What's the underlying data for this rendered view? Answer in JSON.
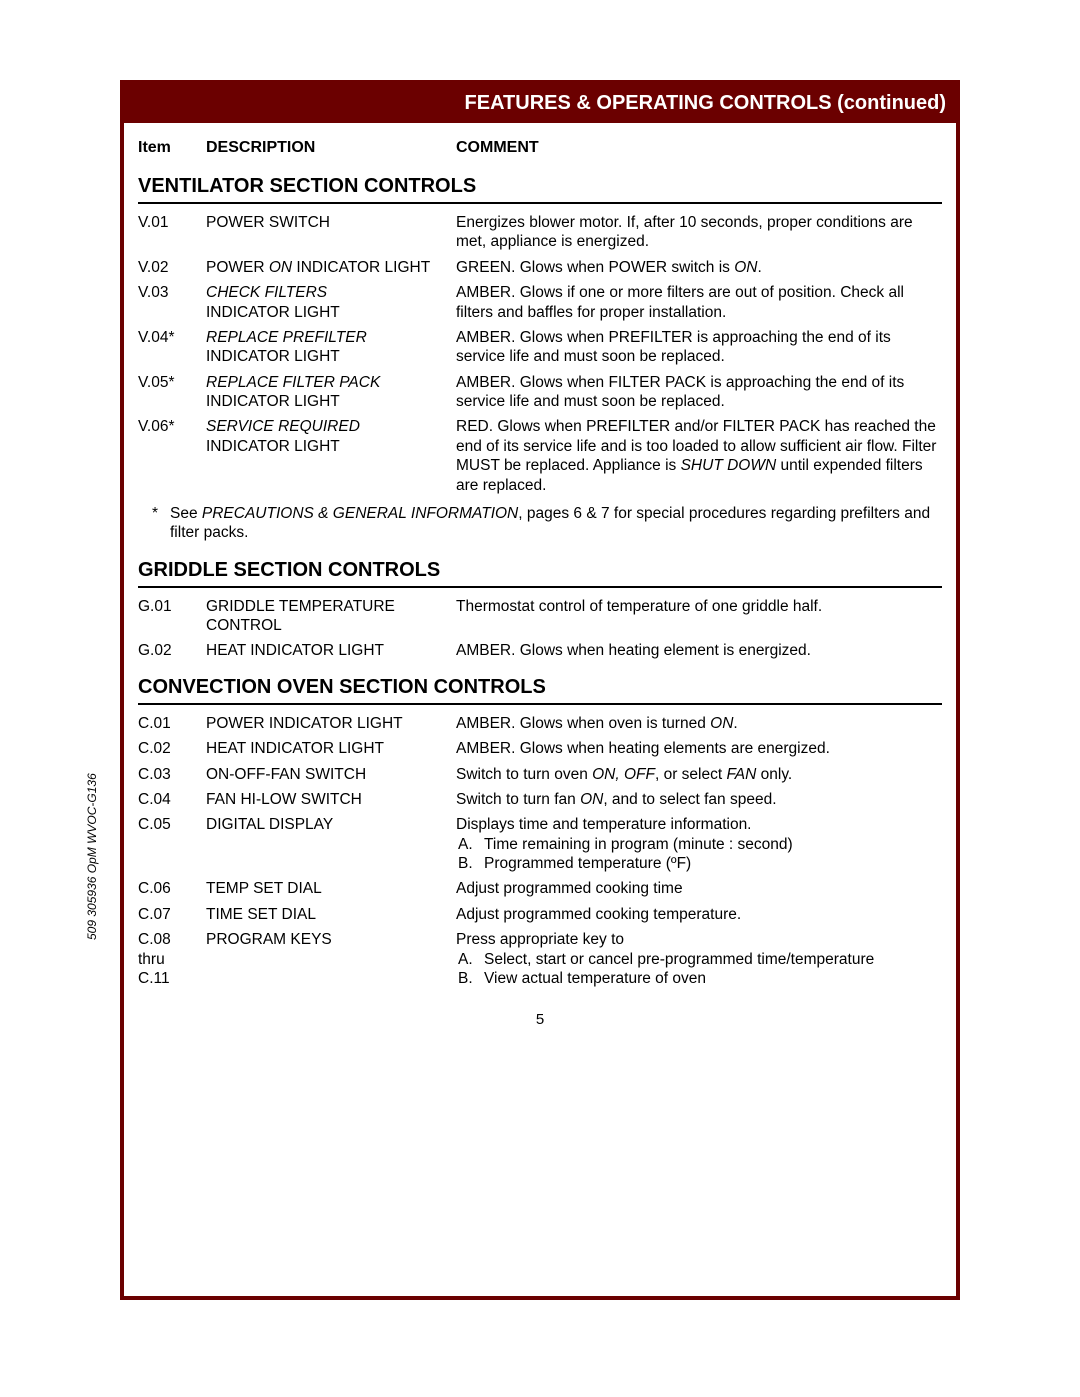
{
  "header_title": "FEATURES & OPERATING CONTROLS (continued)",
  "columns": {
    "item": "Item",
    "description": "DESCRIPTION",
    "comment": "COMMENT"
  },
  "sections": [
    {
      "title": "VENTILATOR SECTION CONTROLS",
      "rows": [
        {
          "item": "V.01",
          "desc_plain": "POWER SWITCH",
          "comment_plain": "Energizes blower motor.  If, after 10 seconds, proper conditions are met, appliance is energized."
        },
        {
          "item": "V.02",
          "desc_pre": "POWER ",
          "desc_ital": "ON",
          "desc_post": " INDICATOR LIGHT",
          "comment_pre": "GREEN.  Glows when POWER switch is ",
          "comment_ital": "ON",
          "comment_post": "."
        },
        {
          "item": "V.03",
          "desc_ital": "CHECK FILTERS",
          "desc_post_break": "INDICATOR LIGHT",
          "comment_plain": "AMBER.  Glows if one or more filters are out of position.  Check all filters and baffles for proper installation."
        },
        {
          "item": "V.04*",
          "desc_ital": "REPLACE PREFILTER",
          "desc_post_break": "INDICATOR LIGHT",
          "comment_plain": "AMBER.  Glows when PREFILTER is approaching the end of its service life and must soon be replaced."
        },
        {
          "item": "V.05*",
          "desc_ital": "REPLACE FILTER PACK",
          "desc_post_break": "INDICATOR LIGHT",
          "comment_plain": "AMBER.  Glows when FILTER PACK is approaching the end of its service life and must soon be replaced."
        },
        {
          "item": "V.06*",
          "desc_ital": "SERVICE REQUIRED",
          "desc_post_break": "INDICATOR LIGHT",
          "comment_pre": "RED.  Glows when PREFILTER and/or FILTER PACK has reached the end of its service life and is too loaded to allow sufficient air flow.  Filter MUST be replaced.  Appliance is ",
          "comment_ital": "SHUT DOWN",
          "comment_post": " until expended filters are replaced."
        }
      ],
      "footnote": {
        "star": "*",
        "pre": "See ",
        "ital": "PRECAUTIONS & GENERAL INFORMATION",
        "post": ", pages 6 & 7 for special procedures regarding prefilters and filter packs."
      }
    },
    {
      "title": "GRIDDLE SECTION CONTROLS",
      "rows": [
        {
          "item": "G.01",
          "desc_plain": "GRIDDLE TEMPERATURE CONTROL",
          "comment_plain": "Thermostat control of temperature of one griddle half."
        },
        {
          "item": "G.02",
          "desc_plain": "HEAT INDICATOR LIGHT",
          "comment_plain": "AMBER.  Glows when heating element is energized."
        }
      ]
    },
    {
      "title": "CONVECTION OVEN SECTION CONTROLS",
      "rows": [
        {
          "item": "C.01",
          "desc_plain": "POWER INDICATOR LIGHT",
          "comment_pre": "AMBER.  Glows when oven is turned ",
          "comment_ital": "ON",
          "comment_post": "."
        },
        {
          "item": "C.02",
          "desc_plain": "HEAT INDICATOR LIGHT",
          "comment_plain": "AMBER.  Glows when heating elements are energized."
        },
        {
          "item": "C.03",
          "desc_plain": "ON-OFF-FAN SWITCH",
          "comment_pre": "Switch to turn oven ",
          "comment_ital": "ON, OFF",
          "comment_mid": ", or select ",
          "comment_ital2": "FAN",
          "comment_post": " only."
        },
        {
          "item": "C.04",
          "desc_plain": "FAN HI-LOW SWITCH",
          "comment_pre": "Switch to turn fan ",
          "comment_ital": "ON",
          "comment_post": ", and to select fan speed."
        },
        {
          "item": "C.05",
          "desc_plain": "DIGITAL DISPLAY",
          "comment_lead": "Displays time and temperature information.",
          "sublist": [
            {
              "letter": "A.",
              "text": "Time remaining in program (minute : second)"
            },
            {
              "letter": "B.",
              "text": "Programmed temperature (ºF)"
            }
          ]
        },
        {
          "item": "C.06",
          "desc_plain": "TEMP SET DIAL",
          "comment_plain": "Adjust programmed cooking time"
        },
        {
          "item": "C.07",
          "desc_plain": "TIME SET DIAL",
          "comment_plain": "Adjust programmed cooking temperature."
        },
        {
          "item": "C.08 thru C.11",
          "item_multiline": [
            "C.08",
            "thru",
            "C.11"
          ],
          "desc_plain": "PROGRAM KEYS",
          "comment_lead": "Press appropriate key to",
          "sublist": [
            {
              "letter": "A.",
              "text": "Select, start or cancel pre-programmed time/temperature"
            },
            {
              "letter": "B.",
              "text": "View actual temperature of oven"
            }
          ]
        }
      ]
    }
  ],
  "page_number": "5",
  "side_label": "509 305936 OpM WVOC-G136",
  "colors": {
    "border": "#6b0000",
    "header_bg": "#6b0000",
    "header_fg": "#ffffff",
    "text": "#000000",
    "page_bg": "#ffffff"
  }
}
